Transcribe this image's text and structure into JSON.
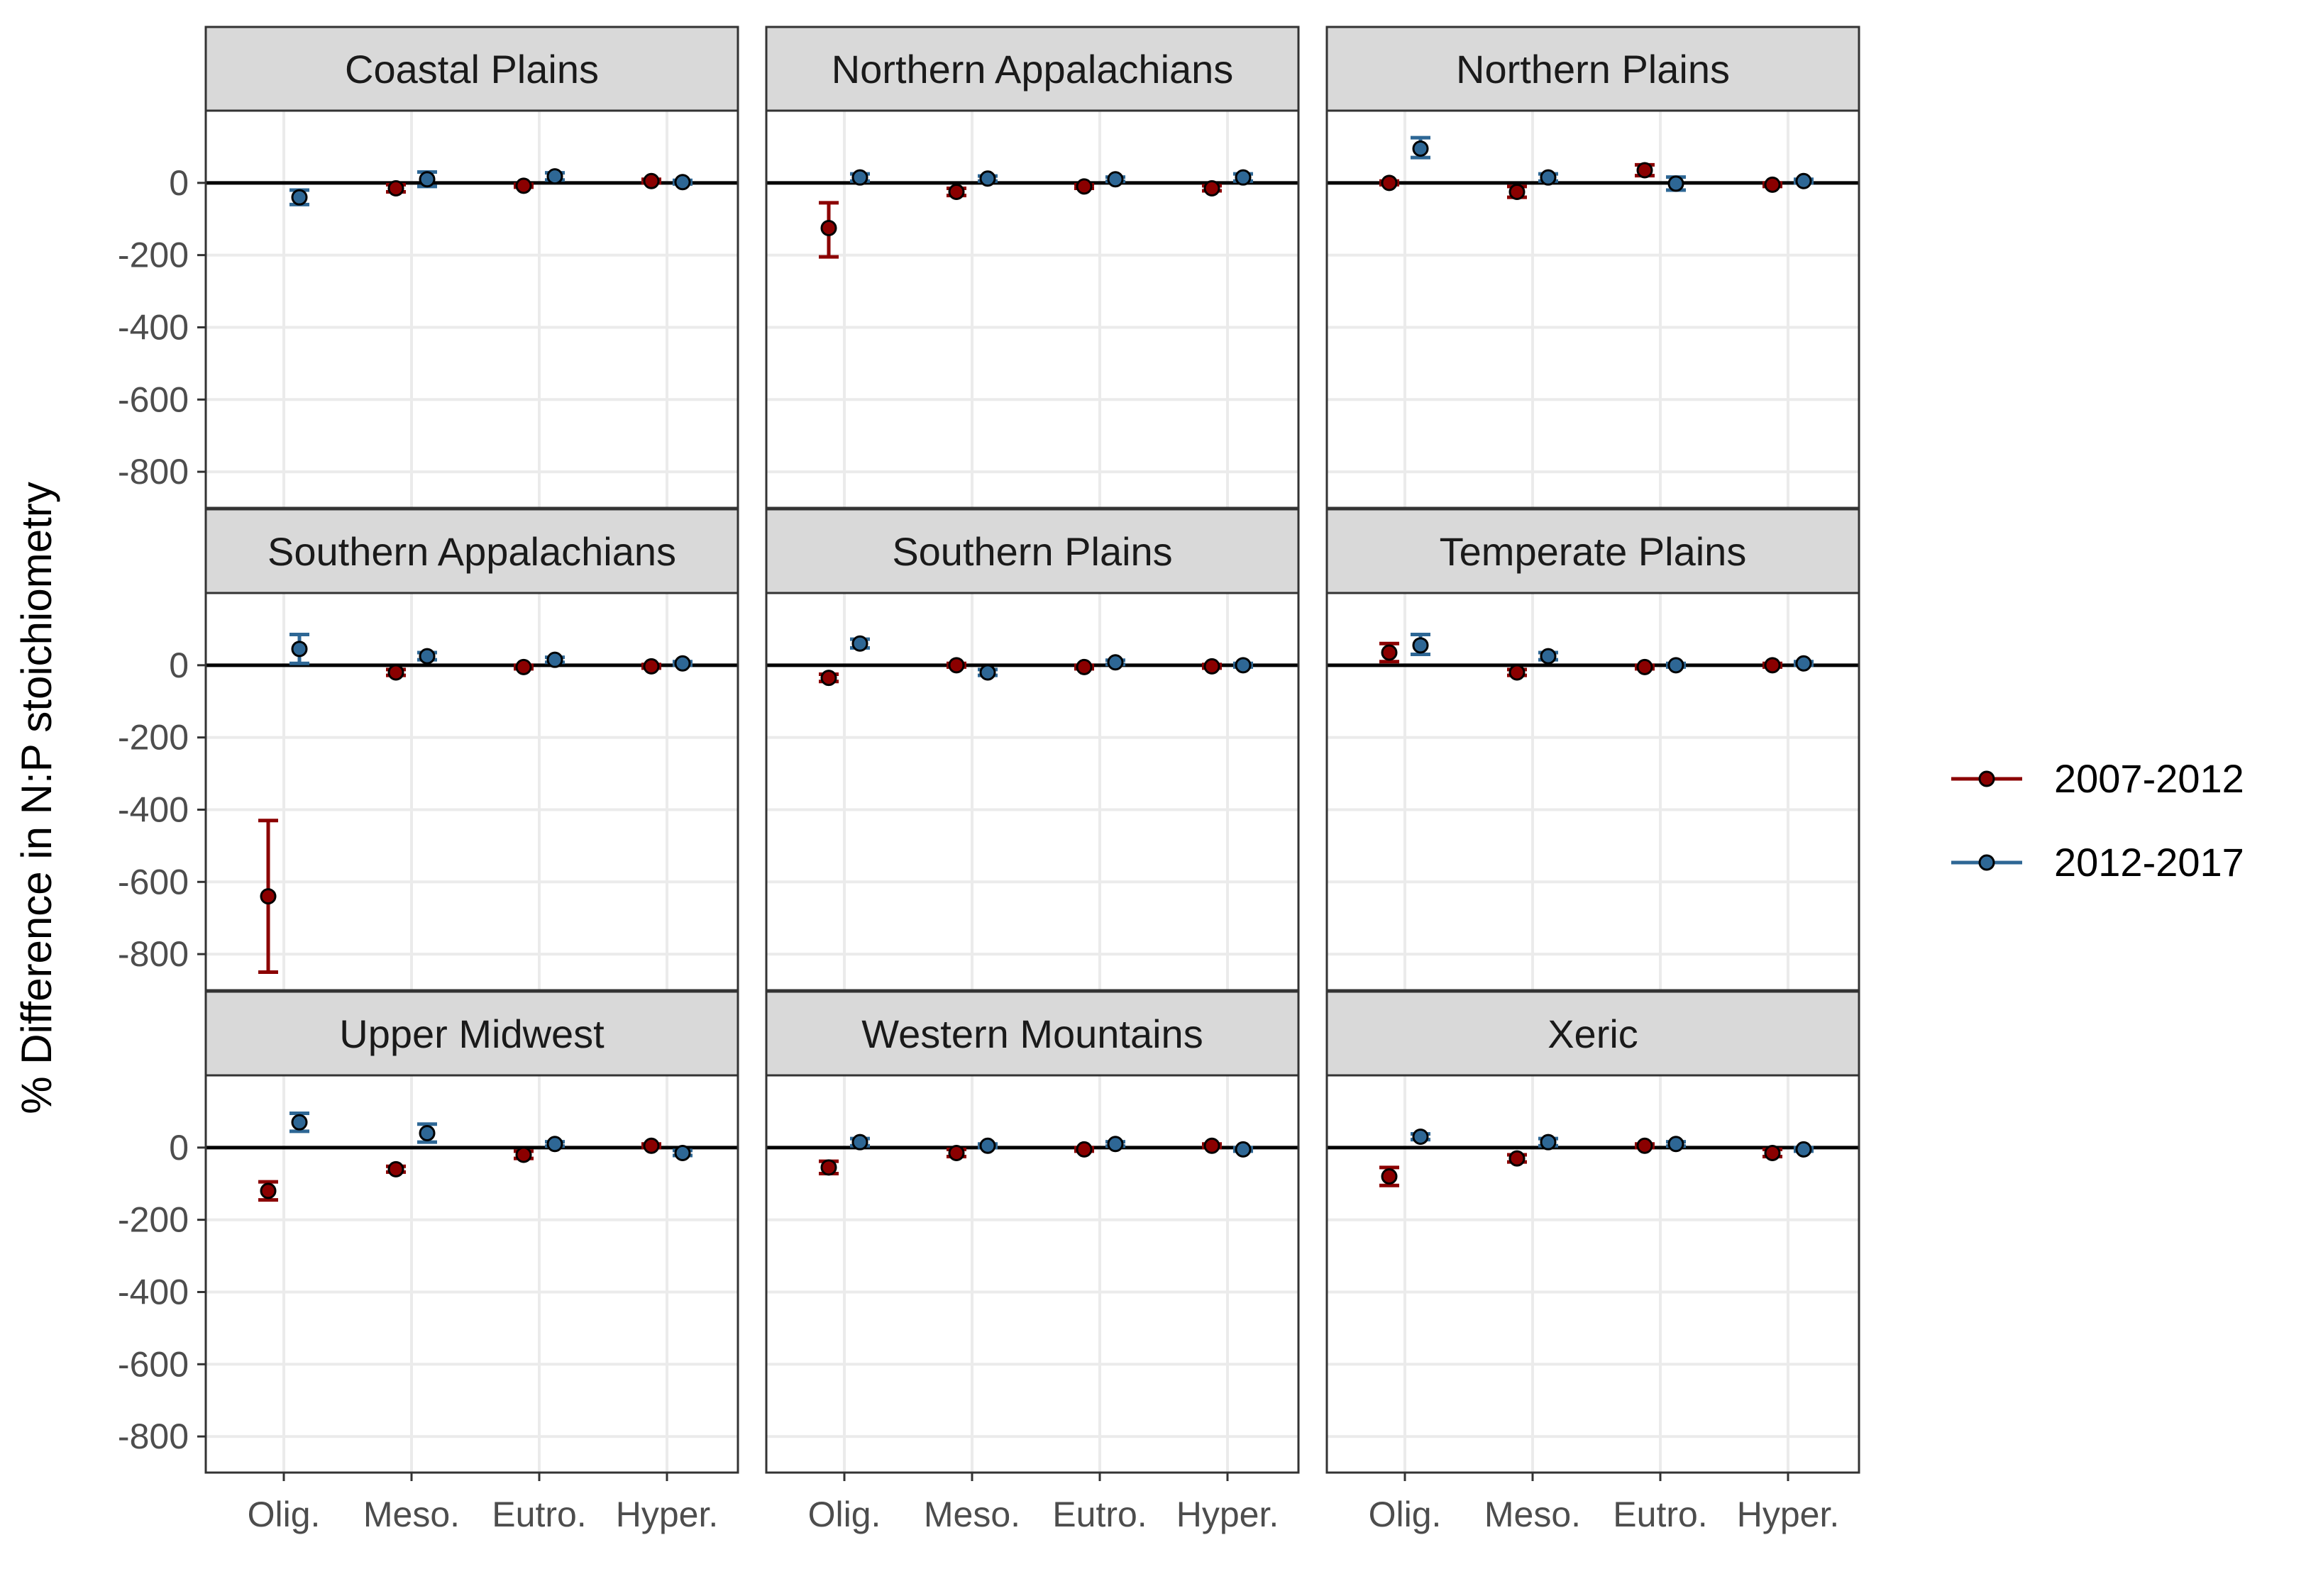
{
  "chart_data": {
    "type": "scatter",
    "subtype": "faceted point-range",
    "ylabel": "% Difference in N:P stoichiometry",
    "xlabel": "",
    "categories": [
      "Olig.",
      "Meso.",
      "Eutro.",
      "Hyper."
    ],
    "ylim": [
      -900,
      200
    ],
    "yticks": [
      0,
      -200,
      -400,
      -600,
      -800
    ],
    "grid": true,
    "reference_line": 0,
    "legend_position": "right",
    "colors": {
      "2007-2012": "#8b0000",
      "2012-2017": "#2e6795",
      "panel_strip": "#d9d9d9",
      "grid": "#ebebeb"
    },
    "series_names": [
      "2007-2012",
      "2012-2017"
    ],
    "facets": [
      {
        "title": "Coastal Plains",
        "series": [
          {
            "name": "2007-2012",
            "points": [
              null,
              {
                "y": -15,
                "lo": -25,
                "hi": -5
              },
              {
                "y": -8,
                "lo": -12,
                "hi": -4
              },
              {
                "y": 5,
                "lo": 0,
                "hi": 10
              }
            ]
          },
          {
            "name": "2012-2017",
            "points": [
              {
                "y": -40,
                "lo": -60,
                "hi": -20
              },
              {
                "y": 10,
                "lo": -10,
                "hi": 30
              },
              {
                "y": 18,
                "lo": 8,
                "hi": 28
              },
              {
                "y": 2,
                "lo": -3,
                "hi": 7
              }
            ]
          }
        ]
      },
      {
        "title": "Northern Appalachians",
        "series": [
          {
            "name": "2007-2012",
            "points": [
              {
                "y": -125,
                "lo": -205,
                "hi": -55
              },
              {
                "y": -25,
                "lo": -35,
                "hi": -15
              },
              {
                "y": -10,
                "lo": -15,
                "hi": -5
              },
              {
                "y": -15,
                "lo": -22,
                "hi": -8
              }
            ]
          },
          {
            "name": "2012-2017",
            "points": [
              {
                "y": 15,
                "lo": 5,
                "hi": 25
              },
              {
                "y": 12,
                "lo": 5,
                "hi": 19
              },
              {
                "y": 10,
                "lo": 4,
                "hi": 16
              },
              {
                "y": 15,
                "lo": 5,
                "hi": 25
              }
            ]
          }
        ]
      },
      {
        "title": "Northern Plains",
        "series": [
          {
            "name": "2007-2012",
            "points": [
              {
                "y": 0,
                "lo": -5,
                "hi": 5
              },
              {
                "y": -25,
                "lo": -40,
                "hi": -10
              },
              {
                "y": 35,
                "lo": 20,
                "hi": 50
              },
              {
                "y": -5,
                "lo": -10,
                "hi": 0
              }
            ]
          },
          {
            "name": "2012-2017",
            "points": [
              {
                "y": 95,
                "lo": 70,
                "hi": 125
              },
              {
                "y": 15,
                "lo": 5,
                "hi": 25
              },
              {
                "y": -2,
                "lo": -20,
                "hi": 16
              },
              {
                "y": 5,
                "lo": 0,
                "hi": 10
              }
            ]
          }
        ]
      },
      {
        "title": "Southern Appalachians",
        "series": [
          {
            "name": "2007-2012",
            "points": [
              {
                "y": -640,
                "lo": -850,
                "hi": -430
              },
              {
                "y": -20,
                "lo": -28,
                "hi": -12
              },
              {
                "y": -5,
                "lo": -10,
                "hi": 0
              },
              {
                "y": -3,
                "lo": -8,
                "hi": 2
              }
            ]
          },
          {
            "name": "2012-2017",
            "points": [
              {
                "y": 45,
                "lo": 5,
                "hi": 85
              },
              {
                "y": 25,
                "lo": 15,
                "hi": 35
              },
              {
                "y": 15,
                "lo": 8,
                "hi": 22
              },
              {
                "y": 5,
                "lo": 0,
                "hi": 10
              }
            ]
          }
        ]
      },
      {
        "title": "Southern Plains",
        "series": [
          {
            "name": "2007-2012",
            "points": [
              {
                "y": -35,
                "lo": -45,
                "hi": -25
              },
              {
                "y": 0,
                "lo": -5,
                "hi": 5
              },
              {
                "y": -5,
                "lo": -10,
                "hi": 0
              },
              {
                "y": -3,
                "lo": -8,
                "hi": 2
              }
            ]
          },
          {
            "name": "2012-2017",
            "points": [
              {
                "y": 60,
                "lo": 48,
                "hi": 72
              },
              {
                "y": -20,
                "lo": -28,
                "hi": -12
              },
              {
                "y": 8,
                "lo": 2,
                "hi": 14
              },
              {
                "y": 0,
                "lo": -5,
                "hi": 5
              }
            ]
          }
        ]
      },
      {
        "title": "Temperate Plains",
        "series": [
          {
            "name": "2007-2012",
            "points": [
              {
                "y": 35,
                "lo": 10,
                "hi": 60
              },
              {
                "y": -20,
                "lo": -28,
                "hi": -12
              },
              {
                "y": -5,
                "lo": -10,
                "hi": 0
              },
              {
                "y": 0,
                "lo": -5,
                "hi": 5
              }
            ]
          },
          {
            "name": "2012-2017",
            "points": [
              {
                "y": 55,
                "lo": 30,
                "hi": 85
              },
              {
                "y": 25,
                "lo": 15,
                "hi": 35
              },
              {
                "y": 0,
                "lo": -5,
                "hi": 5
              },
              {
                "y": 5,
                "lo": 0,
                "hi": 10
              }
            ]
          }
        ]
      },
      {
        "title": "Upper Midwest",
        "series": [
          {
            "name": "2007-2012",
            "points": [
              {
                "y": -120,
                "lo": -145,
                "hi": -95
              },
              {
                "y": -60,
                "lo": -68,
                "hi": -52
              },
              {
                "y": -20,
                "lo": -30,
                "hi": -10
              },
              {
                "y": 5,
                "lo": 0,
                "hi": 10
              }
            ]
          },
          {
            "name": "2012-2017",
            "points": [
              {
                "y": 70,
                "lo": 45,
                "hi": 95
              },
              {
                "y": 40,
                "lo": 15,
                "hi": 65
              },
              {
                "y": 10,
                "lo": 4,
                "hi": 16
              },
              {
                "y": -15,
                "lo": -22,
                "hi": -8
              }
            ]
          }
        ]
      },
      {
        "title": "Western Mountains",
        "series": [
          {
            "name": "2007-2012",
            "points": [
              {
                "y": -55,
                "lo": -72,
                "hi": -38
              },
              {
                "y": -15,
                "lo": -25,
                "hi": -5
              },
              {
                "y": -5,
                "lo": -10,
                "hi": 0
              },
              {
                "y": 5,
                "lo": 0,
                "hi": 10
              }
            ]
          },
          {
            "name": "2012-2017",
            "points": [
              {
                "y": 15,
                "lo": 5,
                "hi": 25
              },
              {
                "y": 5,
                "lo": 0,
                "hi": 10
              },
              {
                "y": 10,
                "lo": 4,
                "hi": 16
              },
              {
                "y": -5,
                "lo": -10,
                "hi": 0
              }
            ]
          }
        ]
      },
      {
        "title": "Xeric",
        "series": [
          {
            "name": "2007-2012",
            "points": [
              {
                "y": -80,
                "lo": -105,
                "hi": -55
              },
              {
                "y": -30,
                "lo": -40,
                "hi": -20
              },
              {
                "y": 5,
                "lo": 0,
                "hi": 10
              },
              {
                "y": -15,
                "lo": -25,
                "hi": -5
              }
            ]
          },
          {
            "name": "2012-2017",
            "points": [
              {
                "y": 30,
                "lo": 22,
                "hi": 38
              },
              {
                "y": 15,
                "lo": 5,
                "hi": 25
              },
              {
                "y": 10,
                "lo": 4,
                "hi": 16
              },
              {
                "y": -5,
                "lo": -10,
                "hi": 0
              }
            ]
          }
        ]
      }
    ]
  }
}
